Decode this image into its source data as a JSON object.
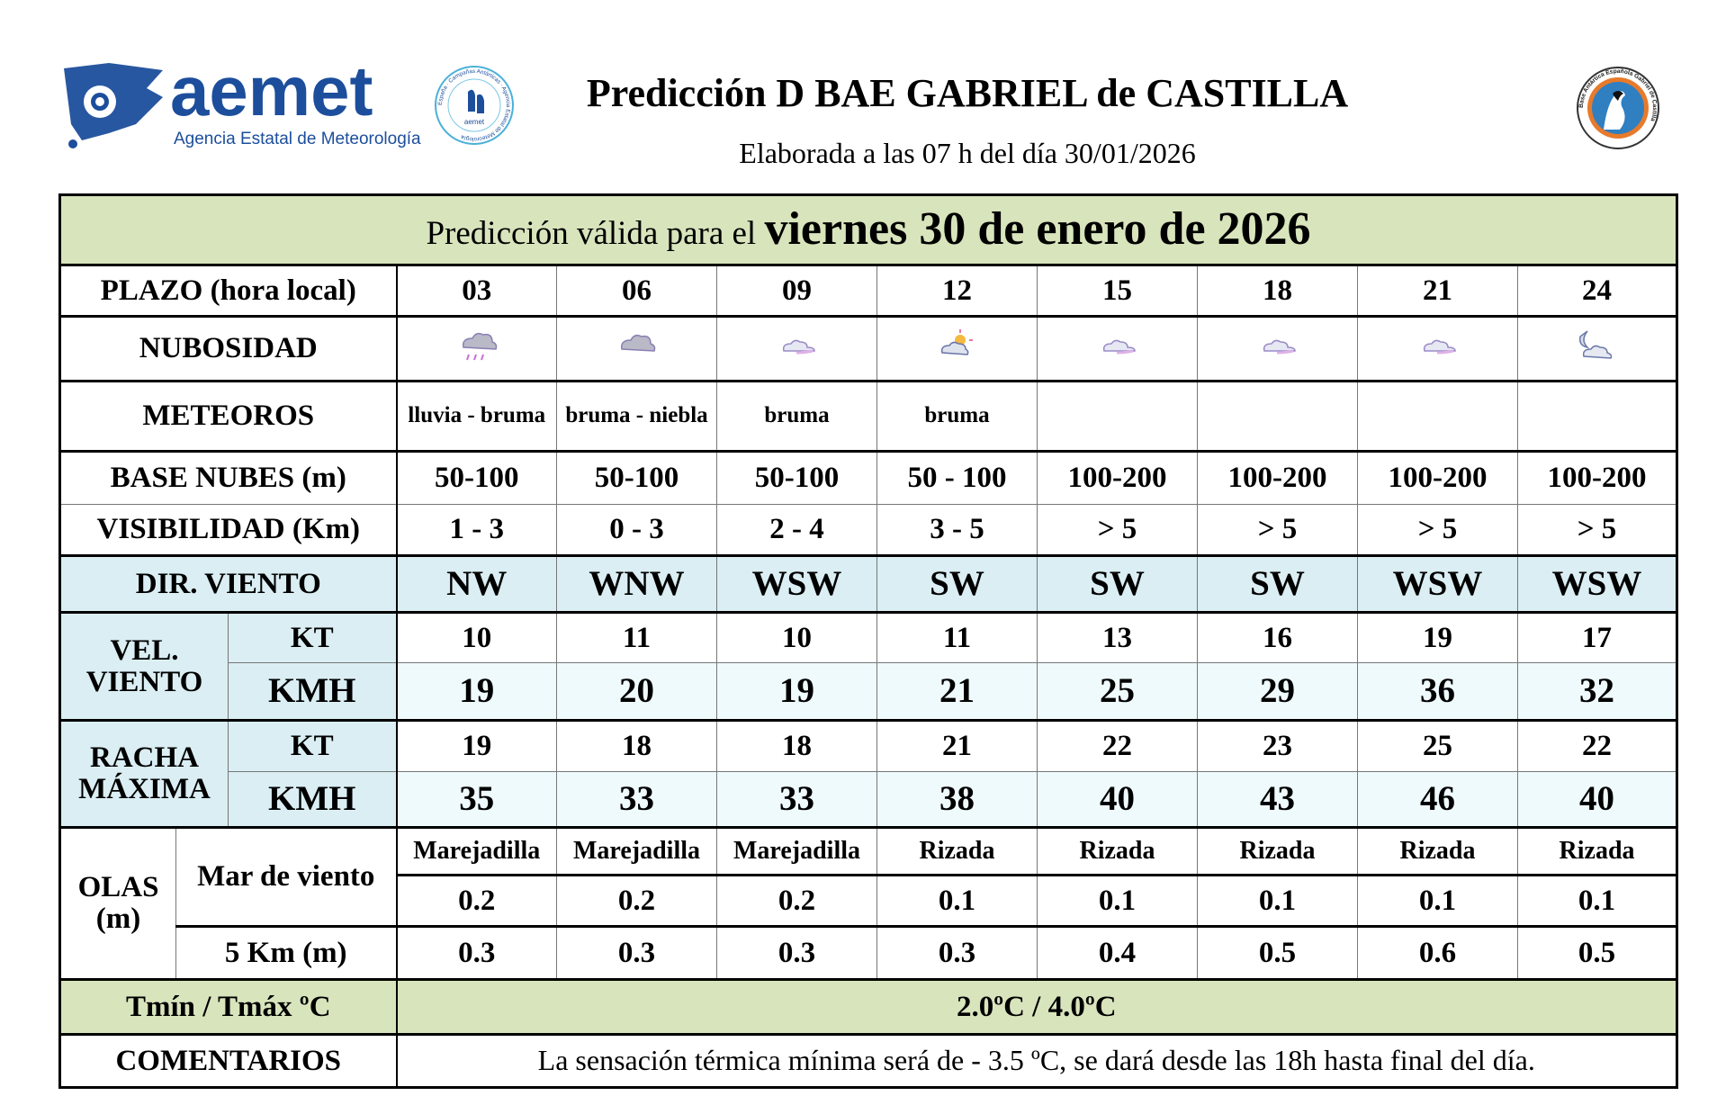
{
  "header": {
    "logo_text": "aemet",
    "logo_subtext": "Agencia Estatal de Meteorología",
    "campaign_logo_text": "España · Campañas Antárticas · Agencia Estatal de Meteorología",
    "base_logo_text": "Base Antártica Española Gabriel de Castilla",
    "title": "Predicción D BAE GABRIEL de CASTILLA",
    "subtitle": "Elaborada a las 07 h del día 30/01/2026"
  },
  "banner": {
    "prefix": "Predicción válida para el ",
    "date": "viernes 30 de enero de 2026"
  },
  "labels": {
    "plazo": "PLAZO (hora local)",
    "nubosidad": "NUBOSIDAD",
    "meteoros": "METEOROS",
    "base_nubes": "BASE NUBES (m)",
    "visibilidad": "VISIBILIDAD (Km)",
    "dir_viento": "DIR. VIENTO",
    "vel_viento": "VEL. VIENTO",
    "racha": "RACHA MÁXIMA",
    "kt": "KT",
    "kmh": "KMH",
    "olas": "OLAS (m)",
    "mar_viento": "Mar de viento",
    "cinco_km": "5 Km (m)",
    "temp": "Tmín / Tmáx ºC",
    "comentarios": "COMENTARIOS"
  },
  "plazo": [
    "03",
    "06",
    "09",
    "12",
    "15",
    "18",
    "21",
    "24"
  ],
  "nubosidad_icons": [
    "cloud-rain-icon",
    "cloud-icon",
    "cloud-small-icon",
    "cloud-sun-icon",
    "cloud-small-icon",
    "cloud-small-icon",
    "cloud-small-icon",
    "cloud-moon-icon"
  ],
  "meteoros": [
    "lluvia - bruma",
    "bruma - niebla",
    "bruma",
    "bruma",
    "",
    "",
    "",
    ""
  ],
  "base_nubes": [
    "50-100",
    "50-100",
    "50-100",
    "50 - 100",
    "100-200",
    "100-200",
    "100-200",
    "100-200"
  ],
  "visibilidad": [
    "1 - 3",
    "0 - 3",
    "2 - 4",
    "3 - 5",
    "> 5",
    "> 5",
    "> 5",
    "> 5"
  ],
  "dir_viento": [
    "NW",
    "WNW",
    "WSW",
    "SW",
    "SW",
    "SW",
    "WSW",
    "WSW"
  ],
  "vel_kt": [
    "10",
    "11",
    "10",
    "11",
    "13",
    "16",
    "19",
    "17"
  ],
  "vel_kmh": [
    "19",
    "20",
    "19",
    "21",
    "25",
    "29",
    "36",
    "32"
  ],
  "racha_kt": [
    "19",
    "18",
    "18",
    "21",
    "22",
    "23",
    "25",
    "22"
  ],
  "racha_kmh": [
    "35",
    "33",
    "33",
    "38",
    "40",
    "43",
    "46",
    "40"
  ],
  "mar_estado": [
    "Marejadilla",
    "Marejadilla",
    "Marejadilla",
    "Rizada",
    "Rizada",
    "Rizada",
    "Rizada",
    "Rizada"
  ],
  "mar_altura": [
    "0.2",
    "0.2",
    "0.2",
    "0.1",
    "0.1",
    "0.1",
    "0.1",
    "0.1"
  ],
  "cinco_km": [
    "0.3",
    "0.3",
    "0.3",
    "0.3",
    "0.4",
    "0.5",
    "0.6",
    "0.5"
  ],
  "temp": "2.0ºC / 4.0ºC",
  "comentarios": "La sensación térmica mínima será de - 3.5 ºC, se dará desde las 18h hasta final del día.",
  "colors": {
    "green": "#d8e4bc",
    "blue": "#daeef3",
    "light_blue": "#effafd",
    "aemet_blue": "#1c4e9c"
  }
}
